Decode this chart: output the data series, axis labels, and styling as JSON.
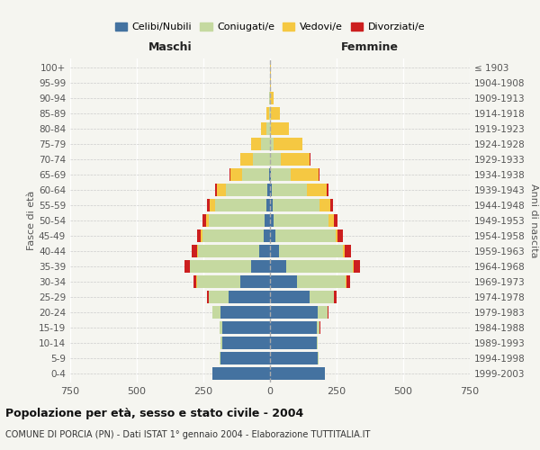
{
  "age_groups": [
    "100+",
    "95-99",
    "90-94",
    "85-89",
    "80-84",
    "75-79",
    "70-74",
    "65-69",
    "60-64",
    "55-59",
    "50-54",
    "45-49",
    "40-44",
    "35-39",
    "30-34",
    "25-29",
    "20-24",
    "15-19",
    "10-14",
    "5-9",
    "0-4"
  ],
  "birth_years": [
    "≤ 1903",
    "1904-1908",
    "1909-1913",
    "1914-1918",
    "1919-1923",
    "1924-1928",
    "1929-1933",
    "1934-1938",
    "1939-1943",
    "1944-1948",
    "1949-1953",
    "1954-1958",
    "1959-1963",
    "1964-1968",
    "1969-1973",
    "1974-1978",
    "1979-1983",
    "1984-1988",
    "1989-1993",
    "1994-1998",
    "1999-2003"
  ],
  "male_celibi": [
    0,
    0,
    0,
    0,
    0,
    0,
    0,
    5,
    10,
    15,
    20,
    25,
    40,
    70,
    110,
    155,
    185,
    180,
    180,
    185,
    215
  ],
  "male_coniugati": [
    0,
    0,
    2,
    5,
    15,
    35,
    65,
    100,
    155,
    190,
    210,
    230,
    230,
    230,
    165,
    75,
    30,
    10,
    5,
    3,
    2
  ],
  "male_vedovi": [
    0,
    0,
    2,
    8,
    20,
    35,
    45,
    45,
    35,
    20,
    10,
    5,
    3,
    2,
    1,
    0,
    0,
    0,
    0,
    0,
    0
  ],
  "male_divorziati": [
    0,
    0,
    0,
    0,
    0,
    0,
    0,
    2,
    5,
    10,
    12,
    15,
    20,
    20,
    12,
    5,
    2,
    0,
    0,
    0,
    0
  ],
  "female_celibi": [
    0,
    0,
    0,
    0,
    0,
    0,
    0,
    3,
    8,
    10,
    15,
    20,
    35,
    60,
    100,
    150,
    180,
    175,
    175,
    180,
    205
  ],
  "female_coniugati": [
    0,
    0,
    0,
    2,
    5,
    15,
    40,
    75,
    130,
    175,
    205,
    225,
    240,
    250,
    185,
    90,
    35,
    12,
    5,
    3,
    2
  ],
  "female_vedovi": [
    2,
    5,
    15,
    35,
    65,
    105,
    110,
    105,
    75,
    40,
    20,
    10,
    5,
    3,
    2,
    1,
    0,
    0,
    0,
    0,
    0
  ],
  "female_divorziati": [
    0,
    0,
    0,
    0,
    0,
    1,
    2,
    3,
    8,
    12,
    15,
    20,
    25,
    25,
    15,
    8,
    3,
    1,
    0,
    0,
    0
  ],
  "color_celibi": "#4472a0",
  "color_coniugati": "#c5d9a0",
  "color_vedovi": "#f5c842",
  "color_divorziati": "#cc1f1f",
  "xlim": 750,
  "title": "Popolazione per età, sesso e stato civile - 2004",
  "subtitle": "COMUNE DI PORCIA (PN) - Dati ISTAT 1° gennaio 2004 - Elaborazione TUTTITALIA.IT",
  "ylabel_left": "Fasce di età",
  "ylabel_right": "Anni di nascita",
  "xlabel_maschi": "Maschi",
  "xlabel_femmine": "Femmine",
  "bg_color": "#f5f5f0",
  "grid_color": "#ffffff",
  "center_line_color": "#aaaaaa"
}
